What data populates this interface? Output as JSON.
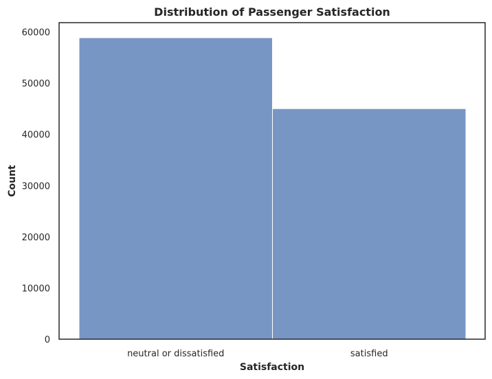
{
  "chart_data": {
    "type": "bar",
    "title": "Distribution of Passenger Satisfaction",
    "xlabel": "Satisfaction",
    "ylabel": "Count",
    "categories": [
      "neutral or dissatisfied",
      "satisfied"
    ],
    "values": [
      58879,
      45025
    ],
    "ylim": [
      0,
      61821
    ],
    "yticks": [
      0,
      10000,
      20000,
      30000,
      40000,
      50000,
      60000
    ],
    "grid": false,
    "legend": "none",
    "bar_color": "#7896c4",
    "bar_edge_color": "#ffffff",
    "axes_color": "#262626"
  }
}
